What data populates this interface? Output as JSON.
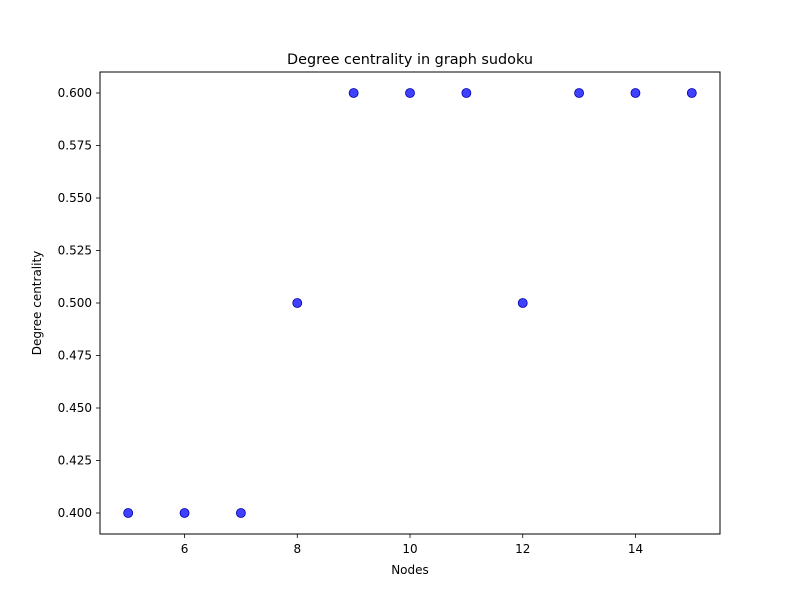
{
  "chart_data": {
    "type": "scatter",
    "title": "Degree centrality in graph sudoku",
    "xlabel": "Nodes",
    "ylabel": "Degree centrality",
    "x": [
      5,
      6,
      7,
      8,
      9,
      10,
      11,
      12,
      13,
      14,
      15
    ],
    "y": [
      0.4,
      0.4,
      0.4,
      0.5,
      0.6,
      0.6,
      0.6,
      0.5,
      0.6,
      0.6,
      0.6
    ],
    "xlim": [
      4.5,
      15.5
    ],
    "ylim": [
      0.39,
      0.61
    ],
    "xticks": [
      6,
      8,
      10,
      12,
      14
    ],
    "xtick_labels": [
      "6",
      "8",
      "10",
      "12",
      "14"
    ],
    "yticks": [
      0.4,
      0.425,
      0.45,
      0.475,
      0.5,
      0.525,
      0.55,
      0.575,
      0.6
    ],
    "ytick_labels": [
      "0.400",
      "0.425",
      "0.450",
      "0.475",
      "0.500",
      "0.525",
      "0.550",
      "0.575",
      "0.600"
    ],
    "grid": false,
    "marker_color": "#0000ff",
    "marker_edge_color": "#0000aa"
  }
}
